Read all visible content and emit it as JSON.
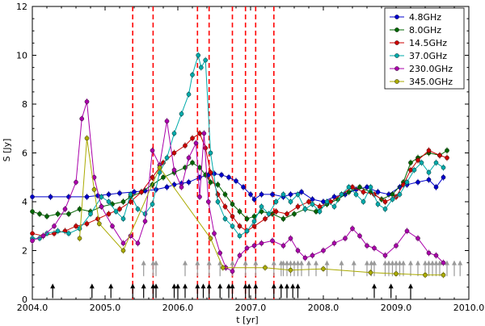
{
  "chart_data": {
    "type": "line",
    "xlabel": "t [yr]",
    "ylabel": "S [Jy]",
    "xlim": [
      2004.0,
      2010.0
    ],
    "ylim": [
      0,
      12
    ],
    "x_ticks": [
      2004.0,
      2005.0,
      2006.0,
      2007.0,
      2008.0,
      2009.0,
      2010.0
    ],
    "x_tick_labels": [
      "2004.0",
      "2005.0",
      "2006.0",
      "2007.0",
      "2008.0",
      "2009.0",
      "2010.0"
    ],
    "y_ticks": [
      0,
      2,
      4,
      6,
      8,
      10,
      12
    ],
    "y_tick_labels": [
      "0",
      "2",
      "4",
      "6",
      "8",
      "10",
      "12"
    ],
    "legend_position": "top-right",
    "series": [
      {
        "name": "4.8GHz",
        "color": "#0000cc",
        "points": [
          [
            2004.0,
            4.2
          ],
          [
            2004.25,
            4.2
          ],
          [
            2004.5,
            4.2
          ],
          [
            2004.75,
            4.2
          ],
          [
            2004.9,
            4.25
          ],
          [
            2005.05,
            4.3
          ],
          [
            2005.2,
            4.35
          ],
          [
            2005.4,
            4.4
          ],
          [
            2005.55,
            4.45
          ],
          [
            2005.7,
            4.5
          ],
          [
            2005.85,
            4.6
          ],
          [
            2005.95,
            4.7
          ],
          [
            2006.05,
            4.75
          ],
          [
            2006.15,
            4.8
          ],
          [
            2006.3,
            5.0
          ],
          [
            2006.42,
            5.1
          ],
          [
            2006.5,
            5.15
          ],
          [
            2006.6,
            5.1
          ],
          [
            2006.7,
            5.0
          ],
          [
            2006.8,
            4.85
          ],
          [
            2006.9,
            4.6
          ],
          [
            2007.0,
            4.3
          ],
          [
            2007.05,
            4.1
          ],
          [
            2007.15,
            4.3
          ],
          [
            2007.3,
            4.3
          ],
          [
            2007.45,
            4.2
          ],
          [
            2007.55,
            4.3
          ],
          [
            2007.7,
            4.4
          ],
          [
            2007.85,
            4.1
          ],
          [
            2008.0,
            4.0
          ],
          [
            2008.15,
            4.2
          ],
          [
            2008.3,
            4.3
          ],
          [
            2008.45,
            4.5
          ],
          [
            2008.6,
            4.6
          ],
          [
            2008.75,
            4.4
          ],
          [
            2008.9,
            4.3
          ],
          [
            2009.05,
            4.6
          ],
          [
            2009.15,
            4.7
          ],
          [
            2009.3,
            4.8
          ],
          [
            2009.45,
            4.9
          ],
          [
            2009.55,
            4.6
          ],
          [
            2009.65,
            5.0
          ]
        ]
      },
      {
        "name": "8.0GHz",
        "color": "#006600",
        "points": [
          [
            2004.0,
            3.6
          ],
          [
            2004.1,
            3.5
          ],
          [
            2004.2,
            3.4
          ],
          [
            2004.35,
            3.5
          ],
          [
            2004.5,
            3.5
          ],
          [
            2004.65,
            3.7
          ],
          [
            2004.8,
            3.6
          ],
          [
            2004.95,
            3.8
          ],
          [
            2005.1,
            3.9
          ],
          [
            2005.25,
            4.0
          ],
          [
            2005.35,
            4.2
          ],
          [
            2005.5,
            4.4
          ],
          [
            2005.65,
            4.7
          ],
          [
            2005.8,
            5.0
          ],
          [
            2005.95,
            5.2
          ],
          [
            2006.1,
            5.4
          ],
          [
            2006.2,
            5.6
          ],
          [
            2006.3,
            5.4
          ],
          [
            2006.38,
            5.1
          ],
          [
            2006.45,
            4.8
          ],
          [
            2006.55,
            4.7
          ],
          [
            2006.65,
            4.3
          ],
          [
            2006.75,
            3.9
          ],
          [
            2006.85,
            3.6
          ],
          [
            2006.95,
            3.3
          ],
          [
            2007.05,
            3.4
          ],
          [
            2007.15,
            3.6
          ],
          [
            2007.3,
            3.5
          ],
          [
            2007.45,
            3.3
          ],
          [
            2007.6,
            3.5
          ],
          [
            2007.75,
            3.7
          ],
          [
            2007.9,
            3.6
          ],
          [
            2008.05,
            3.9
          ],
          [
            2008.2,
            4.1
          ],
          [
            2008.35,
            4.4
          ],
          [
            2008.5,
            4.6
          ],
          [
            2008.65,
            4.4
          ],
          [
            2008.8,
            4.1
          ],
          [
            2008.95,
            4.3
          ],
          [
            2009.1,
            4.8
          ],
          [
            2009.2,
            5.6
          ],
          [
            2009.3,
            5.8
          ],
          [
            2009.45,
            6.0
          ],
          [
            2009.6,
            5.9
          ],
          [
            2009.7,
            6.1
          ]
        ]
      },
      {
        "name": "14.5GHz",
        "color": "#cc0000",
        "points": [
          [
            2004.0,
            2.7
          ],
          [
            2004.15,
            2.6
          ],
          [
            2004.3,
            2.7
          ],
          [
            2004.45,
            2.8
          ],
          [
            2004.6,
            3.0
          ],
          [
            2004.75,
            3.1
          ],
          [
            2004.9,
            3.3
          ],
          [
            2005.05,
            3.5
          ],
          [
            2005.2,
            3.7
          ],
          [
            2005.35,
            4.0
          ],
          [
            2005.5,
            4.4
          ],
          [
            2005.65,
            5.0
          ],
          [
            2005.8,
            5.6
          ],
          [
            2005.95,
            6.0
          ],
          [
            2006.1,
            6.3
          ],
          [
            2006.2,
            6.6
          ],
          [
            2006.3,
            6.8
          ],
          [
            2006.38,
            6.2
          ],
          [
            2006.45,
            5.2
          ],
          [
            2006.55,
            4.3
          ],
          [
            2006.65,
            3.8
          ],
          [
            2006.75,
            3.4
          ],
          [
            2006.85,
            3.0
          ],
          [
            2006.95,
            2.8
          ],
          [
            2007.05,
            3.0
          ],
          [
            2007.2,
            3.3
          ],
          [
            2007.35,
            3.6
          ],
          [
            2007.5,
            3.5
          ],
          [
            2007.65,
            3.8
          ],
          [
            2007.8,
            4.0
          ],
          [
            2007.95,
            3.8
          ],
          [
            2008.1,
            4.0
          ],
          [
            2008.25,
            4.3
          ],
          [
            2008.4,
            4.6
          ],
          [
            2008.55,
            4.4
          ],
          [
            2008.7,
            4.3
          ],
          [
            2008.85,
            4.0
          ],
          [
            2009.0,
            4.2
          ],
          [
            2009.1,
            4.7
          ],
          [
            2009.2,
            5.3
          ],
          [
            2009.3,
            5.7
          ],
          [
            2009.45,
            6.1
          ],
          [
            2009.6,
            5.9
          ],
          [
            2009.7,
            5.8
          ]
        ]
      },
      {
        "name": "37.0GHz",
        "color": "#00aaaa",
        "points": [
          [
            2004.0,
            2.5
          ],
          [
            2004.1,
            2.5
          ],
          [
            2004.2,
            2.7
          ],
          [
            2004.35,
            2.8
          ],
          [
            2004.5,
            2.7
          ],
          [
            2004.65,
            2.9
          ],
          [
            2004.8,
            3.5
          ],
          [
            2004.95,
            4.2
          ],
          [
            2005.05,
            4.0
          ],
          [
            2005.15,
            3.6
          ],
          [
            2005.25,
            3.3
          ],
          [
            2005.35,
            4.3
          ],
          [
            2005.45,
            3.7
          ],
          [
            2005.55,
            3.5
          ],
          [
            2005.65,
            3.9
          ],
          [
            2005.75,
            5.2
          ],
          [
            2005.85,
            5.8
          ],
          [
            2005.95,
            6.8
          ],
          [
            2006.05,
            7.6
          ],
          [
            2006.15,
            8.4
          ],
          [
            2006.2,
            9.2
          ],
          [
            2006.28,
            10.0
          ],
          [
            2006.32,
            9.5
          ],
          [
            2006.38,
            9.8
          ],
          [
            2006.45,
            6.0
          ],
          [
            2006.55,
            4.0
          ],
          [
            2006.65,
            3.3
          ],
          [
            2006.75,
            3.0
          ],
          [
            2006.85,
            2.6
          ],
          [
            2006.95,
            2.8
          ],
          [
            2007.05,
            3.2
          ],
          [
            2007.15,
            3.8
          ],
          [
            2007.25,
            3.5
          ],
          [
            2007.35,
            4.0
          ],
          [
            2007.45,
            4.3
          ],
          [
            2007.55,
            4.0
          ],
          [
            2007.65,
            4.3
          ],
          [
            2007.75,
            3.7
          ],
          [
            2007.85,
            3.9
          ],
          [
            2007.95,
            3.6
          ],
          [
            2008.05,
            4.0
          ],
          [
            2008.15,
            3.8
          ],
          [
            2008.25,
            4.3
          ],
          [
            2008.35,
            4.6
          ],
          [
            2008.45,
            4.3
          ],
          [
            2008.55,
            4.0
          ],
          [
            2008.65,
            4.6
          ],
          [
            2008.75,
            3.9
          ],
          [
            2008.85,
            3.7
          ],
          [
            2008.95,
            4.1
          ],
          [
            2009.05,
            4.3
          ],
          [
            2009.15,
            4.8
          ],
          [
            2009.25,
            5.3
          ],
          [
            2009.35,
            5.6
          ],
          [
            2009.45,
            5.2
          ],
          [
            2009.55,
            5.6
          ],
          [
            2009.65,
            5.4
          ]
        ]
      },
      {
        "name": "230.0GHz",
        "color": "#aa00aa",
        "points": [
          [
            2004.0,
            2.4
          ],
          [
            2004.15,
            2.6
          ],
          [
            2004.3,
            3.0
          ],
          [
            2004.45,
            3.7
          ],
          [
            2004.6,
            4.8
          ],
          [
            2004.68,
            7.4
          ],
          [
            2004.75,
            8.1
          ],
          [
            2004.85,
            5.0
          ],
          [
            2004.95,
            3.8
          ],
          [
            2005.1,
            3.0
          ],
          [
            2005.25,
            2.3
          ],
          [
            2005.35,
            2.6
          ],
          [
            2005.45,
            2.3
          ],
          [
            2005.55,
            3.2
          ],
          [
            2005.65,
            6.1
          ],
          [
            2005.75,
            5.5
          ],
          [
            2005.85,
            7.3
          ],
          [
            2005.95,
            5.3
          ],
          [
            2006.05,
            4.6
          ],
          [
            2006.15,
            5.8
          ],
          [
            2006.25,
            6.4
          ],
          [
            2006.3,
            4.2
          ],
          [
            2006.36,
            6.8
          ],
          [
            2006.42,
            4.0
          ],
          [
            2006.5,
            2.7
          ],
          [
            2006.58,
            1.9
          ],
          [
            2006.66,
            1.3
          ],
          [
            2006.75,
            1.15
          ],
          [
            2006.85,
            1.8
          ],
          [
            2006.95,
            2.1
          ],
          [
            2007.05,
            2.2
          ],
          [
            2007.15,
            2.3
          ],
          [
            2007.3,
            2.4
          ],
          [
            2007.45,
            2.2
          ],
          [
            2007.55,
            2.5
          ],
          [
            2007.65,
            2.0
          ],
          [
            2007.75,
            1.7
          ],
          [
            2007.85,
            1.8
          ],
          [
            2008.0,
            2.0
          ],
          [
            2008.15,
            2.3
          ],
          [
            2008.3,
            2.5
          ],
          [
            2008.4,
            2.9
          ],
          [
            2008.5,
            2.6
          ],
          [
            2008.6,
            2.2
          ],
          [
            2008.7,
            2.1
          ],
          [
            2008.85,
            1.8
          ],
          [
            2009.0,
            2.2
          ],
          [
            2009.15,
            2.8
          ],
          [
            2009.3,
            2.5
          ],
          [
            2009.45,
            1.9
          ],
          [
            2009.55,
            1.8
          ],
          [
            2009.65,
            1.5
          ]
        ]
      },
      {
        "name": "345.0GHz",
        "color": "#aaaa00",
        "points": [
          [
            2004.65,
            2.5
          ],
          [
            2004.75,
            6.6
          ],
          [
            2004.85,
            4.5
          ],
          [
            2004.92,
            3.1
          ],
          [
            2005.25,
            2.0
          ],
          [
            2005.75,
            5.4
          ],
          [
            2006.45,
            2.5
          ],
          [
            2006.62,
            1.3
          ],
          [
            2007.2,
            1.3
          ],
          [
            2007.55,
            1.2
          ],
          [
            2008.0,
            1.25
          ],
          [
            2008.65,
            1.1
          ],
          [
            2009.0,
            1.05
          ],
          [
            2009.4,
            1.0
          ],
          [
            2009.65,
            1.0
          ]
        ]
      }
    ],
    "vertical_lines": {
      "color": "#ff0000",
      "x": [
        2005.38,
        2005.66,
        2006.27,
        2006.43,
        2006.75,
        2006.93,
        2007.07,
        2007.32
      ]
    },
    "arrows_black": {
      "color": "#000000",
      "x": [
        2004.28,
        2004.82,
        2005.08,
        2005.38,
        2005.53,
        2005.66,
        2005.7,
        2005.95,
        2006.0,
        2006.1,
        2006.27,
        2006.35,
        2006.43,
        2006.58,
        2006.7,
        2006.75,
        2006.93,
        2006.98,
        2007.07,
        2007.32,
        2007.42,
        2007.5,
        2007.58,
        2007.65,
        2008.7,
        2008.93,
        2009.2
      ]
    },
    "arrows_gray": {
      "color": "#999999",
      "x": [
        2005.53,
        2005.66,
        2005.7,
        2006.1,
        2006.27,
        2006.43,
        2006.58,
        2006.75,
        2006.93,
        2007.07,
        2007.32,
        2007.42,
        2007.45,
        2007.5,
        2007.55,
        2007.6,
        2007.65,
        2007.7,
        2007.8,
        2007.9,
        2008.05,
        2008.25,
        2008.42,
        2008.6,
        2008.66,
        2008.7,
        2008.85,
        2008.9,
        2008.95,
        2009.0,
        2009.05,
        2009.1,
        2009.2,
        2009.3,
        2009.4,
        2009.45,
        2009.5,
        2009.55,
        2009.6,
        2009.7,
        2009.8,
        2009.88
      ]
    }
  }
}
